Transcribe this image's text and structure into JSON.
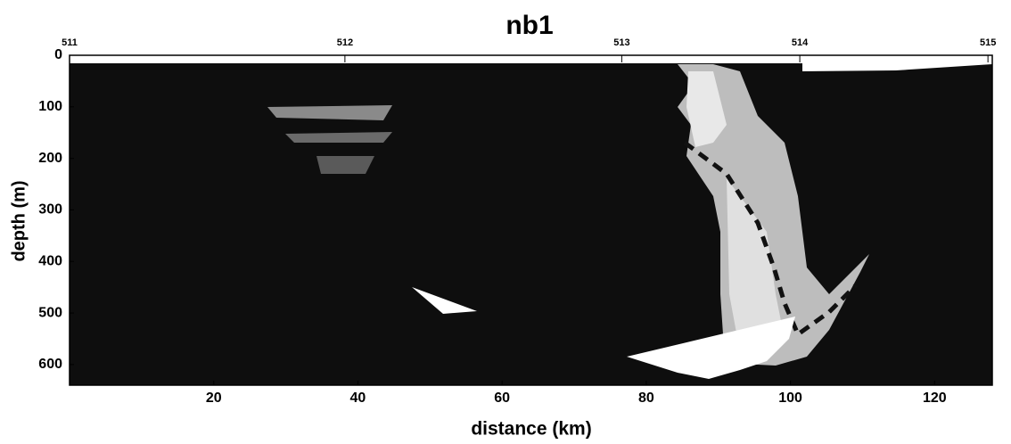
{
  "chart_data": {
    "type": "image",
    "title": "nb1",
    "xlabel": "distance (km)",
    "ylabel": "depth (m)",
    "xlim": [
      0,
      128
    ],
    "xticks": [
      20,
      40,
      60,
      80,
      100,
      120
    ],
    "ylim": [
      0,
      640
    ],
    "yticks": [
      0,
      100,
      200,
      300,
      400,
      500,
      600
    ],
    "top_ticks": [
      {
        "value": 0,
        "label": "511"
      },
      {
        "value": 38.2,
        "label": "512"
      },
      {
        "value": 76.6,
        "label": "513"
      },
      {
        "value": 101.3,
        "label": "514"
      },
      {
        "value": 127.4,
        "label": "515"
      }
    ]
  }
}
